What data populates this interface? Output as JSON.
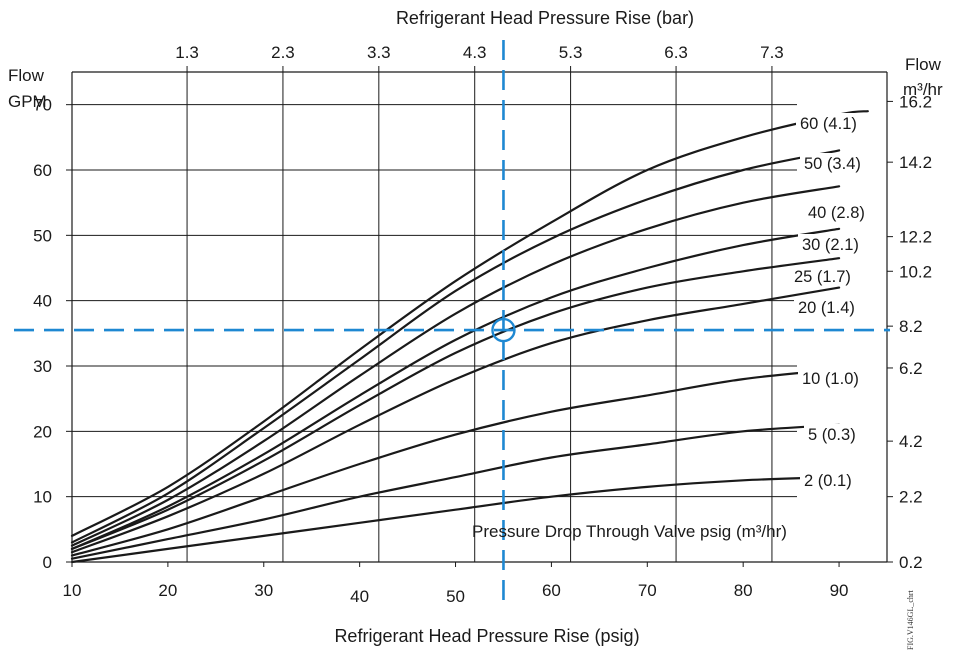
{
  "chart_data": {
    "type": "line",
    "title": "",
    "x_bottom": {
      "label": "Refrigerant Head Pressure Rise (psig)",
      "range": [
        10,
        95
      ],
      "ticks": [
        10,
        20,
        30,
        40,
        50,
        60,
        70,
        80,
        90
      ]
    },
    "x_top": {
      "label": "Refrigerant Head Pressure Rise (bar)",
      "ticks": [
        "1.3",
        "2.3",
        "3.3",
        "4.3",
        "5.3",
        "6.3",
        "7.3"
      ],
      "tick_psig": [
        22,
        32,
        42,
        52,
        62,
        73,
        83
      ]
    },
    "y_left": {
      "label_line1": "Flow",
      "label_line2": "GPM",
      "range": [
        0,
        75
      ],
      "ticks": [
        0,
        10,
        20,
        30,
        40,
        50,
        60,
        70
      ]
    },
    "y_right": {
      "label_line1": "Flow",
      "label_line2": "m³/hr",
      "ticks": [
        "0.2",
        "2.2",
        "4.2",
        "6.2",
        "8.2",
        "10.2",
        "12.2",
        "14.2",
        "16.2"
      ],
      "tick_gpm": [
        0,
        10,
        18.5,
        29.7,
        36.1,
        44.5,
        49.8,
        61.2,
        70.5
      ]
    },
    "legend_title": "Pressure Drop Through Valve psig (m³/hr)",
    "series": [
      {
        "name": "60 (4.1)",
        "x": [
          10,
          20,
          30,
          40,
          50,
          60,
          70,
          80,
          90,
          93
        ],
        "y": [
          4.0,
          11.5,
          21.5,
          32.5,
          43.0,
          52.0,
          60.0,
          65.0,
          68.5,
          69.0
        ]
      },
      {
        "name": "50 (3.4)",
        "x": [
          10,
          20,
          30,
          40,
          50,
          60,
          70,
          80,
          90
        ],
        "y": [
          3.0,
          10.5,
          20.5,
          31.0,
          41.5,
          49.5,
          55.5,
          60.0,
          63.0
        ]
      },
      {
        "name": "40 (2.8)",
        "x": [
          10,
          20,
          30,
          40,
          50,
          60,
          70,
          80,
          90
        ],
        "y": [
          2.5,
          9.5,
          18.5,
          28.5,
          38.0,
          45.5,
          51.0,
          55.0,
          57.5
        ]
      },
      {
        "name": "30 (2.1)",
        "x": [
          10,
          20,
          30,
          40,
          50,
          60,
          70,
          80,
          90
        ],
        "y": [
          2.0,
          8.5,
          16.5,
          25.5,
          34.0,
          40.5,
          45.0,
          48.5,
          51.0
        ]
      },
      {
        "name": "25 (1.7)",
        "x": [
          10,
          20,
          30,
          40,
          50,
          60,
          70,
          80,
          90
        ],
        "y": [
          2.0,
          8.0,
          15.5,
          24.0,
          32.0,
          38.0,
          42.0,
          44.5,
          46.5
        ]
      },
      {
        "name": "20 (1.4)",
        "x": [
          10,
          20,
          30,
          40,
          50,
          60,
          70,
          80,
          90
        ],
        "y": [
          1.5,
          7.0,
          13.5,
          21.0,
          28.0,
          33.5,
          37.0,
          39.5,
          42.0
        ]
      },
      {
        "name": "10 (1.0)",
        "x": [
          10,
          20,
          30,
          40,
          50,
          60,
          70,
          80,
          90
        ],
        "y": [
          1.0,
          5.0,
          10.0,
          15.0,
          19.5,
          23.0,
          25.5,
          28.0,
          29.5
        ]
      },
      {
        "name": "5 (0.3)",
        "x": [
          10,
          20,
          30,
          40,
          50,
          60,
          70,
          80,
          90
        ],
        "y": [
          0.5,
          3.5,
          6.5,
          10.0,
          13.0,
          16.0,
          18.0,
          20.0,
          21.0
        ]
      },
      {
        "name": "2 (0.1)",
        "x": [
          10,
          20,
          30,
          40,
          50,
          60,
          70,
          80,
          90
        ],
        "y": [
          0.0,
          2.0,
          4.0,
          6.0,
          8.0,
          10.0,
          11.5,
          12.5,
          13.0
        ]
      }
    ],
    "reference_point": {
      "x": 55,
      "y": 35.5
    },
    "grid": true,
    "ref_color": "#1e88d2",
    "line_color": "#1a1a1a",
    "watermark": "FIG.V146GL_chrt"
  }
}
